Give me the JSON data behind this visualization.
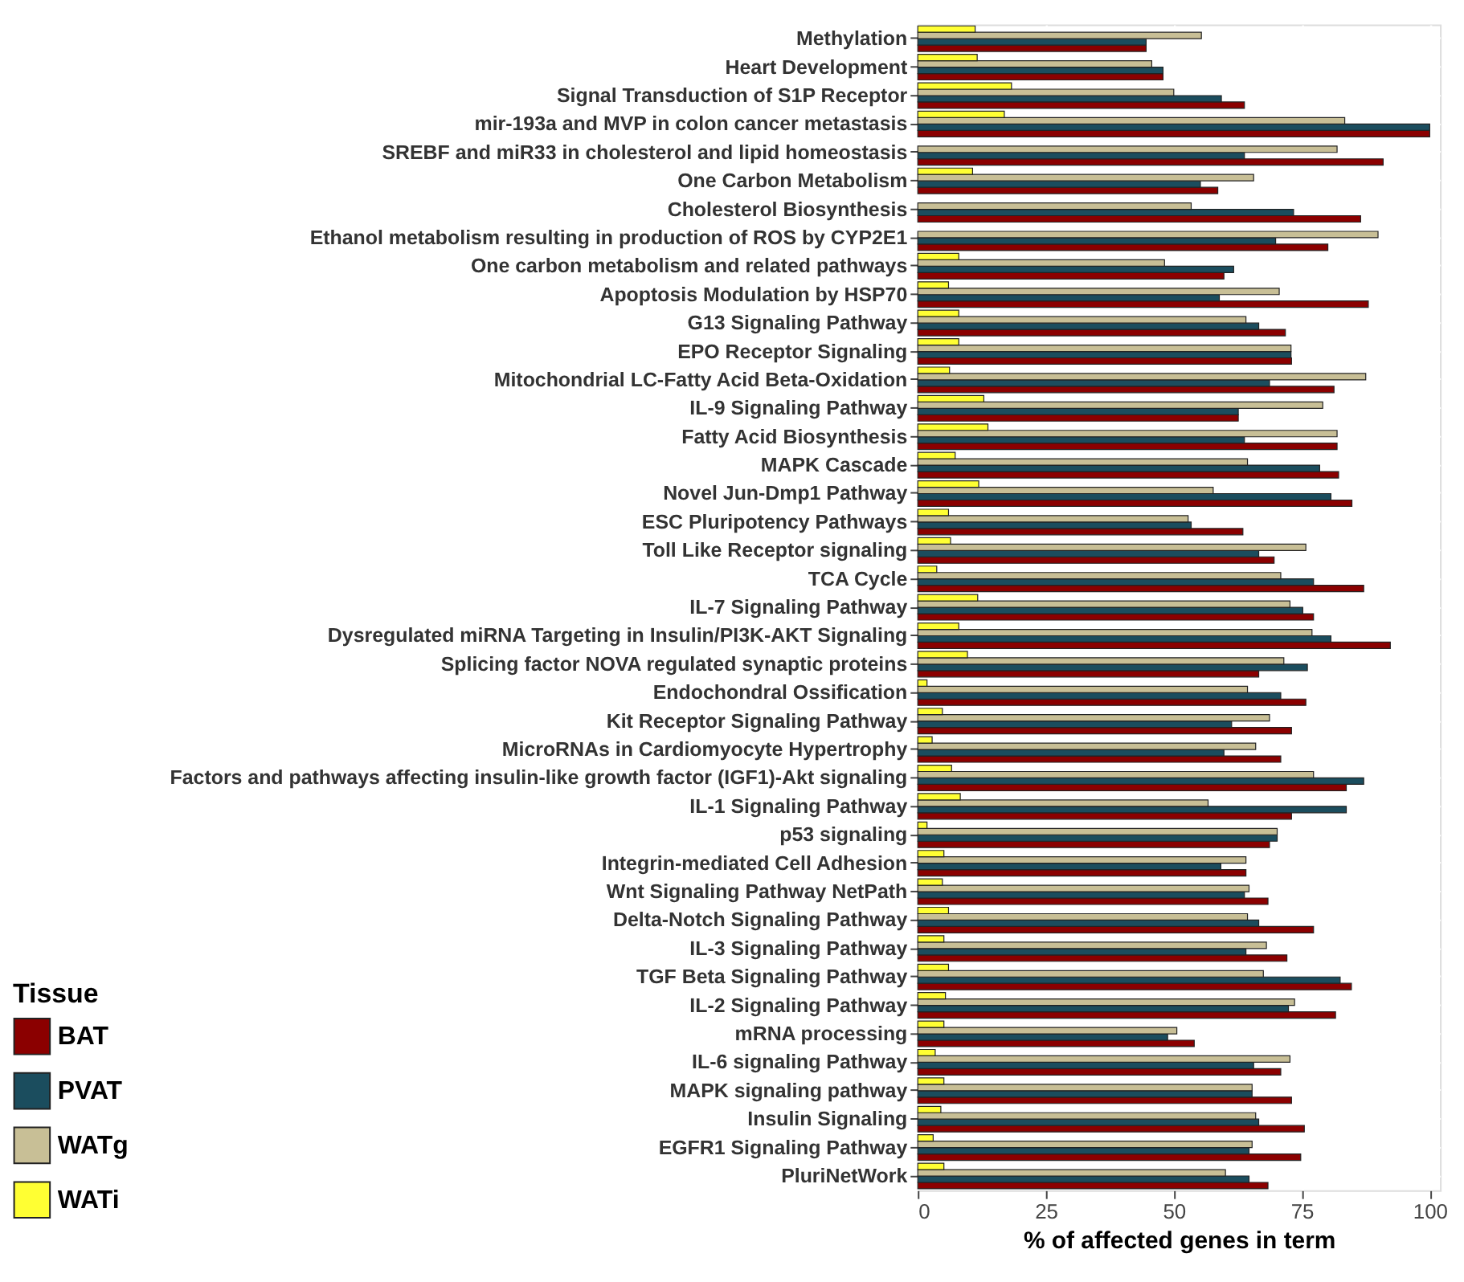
{
  "chart_data": {
    "type": "bar",
    "orientation": "horizontal",
    "xlabel": "% of affected genes in term",
    "legend_title": "Tissue",
    "legend": "bottom left",
    "grid": true,
    "categories": [
      "Methylation",
      "Heart Development",
      "Signal Transduction of S1P Receptor",
      "mir-193a and MVP in colon cancer metastasis",
      "SREBF and miR33 in cholesterol and lipid homeostasis",
      "One Carbon Metabolism",
      "Cholesterol Biosynthesis",
      "Ethanol metabolism resulting in production of ROS by CYP2E1",
      "One carbon metabolism and related pathways",
      "Apoptosis Modulation by HSP70",
      "G13 Signaling Pathway",
      "EPO Receptor Signaling",
      "Mitochondrial LC-Fatty Acid Beta-Oxidation",
      "IL-9 Signaling Pathway",
      "Fatty Acid Biosynthesis",
      "MAPK Cascade",
      "Novel Jun-Dmp1 Pathway",
      "ESC Pluripotency Pathways",
      "Toll Like Receptor signaling",
      "TCA Cycle",
      "IL-7 Signaling Pathway",
      "Dysregulated miRNA Targeting in Insulin/PI3K-AKT Signaling",
      "Splicing factor NOVA regulated synaptic proteins",
      "Endochondral Ossification",
      "Kit Receptor Signaling Pathway",
      "MicroRNAs in Cardiomyocyte Hypertrophy",
      "Factors and pathways affecting insulin-like growth factor (IGF1)-Akt signaling",
      "IL-1 Signaling Pathway",
      "p53 signaling",
      "Integrin-mediated Cell Adhesion",
      "Wnt Signaling Pathway NetPath",
      "Delta-Notch Signaling Pathway",
      "IL-3 Signaling Pathway",
      "TGF Beta Signaling Pathway",
      "IL-2 Signaling Pathway",
      "mRNA processing",
      "IL-6 signaling Pathway",
      "MAPK signaling pathway",
      "Insulin Signaling",
      "EGFR1 Signaling Pathway",
      "PluriNetWork"
    ],
    "series": [
      {
        "name": "BAT",
        "color": "#8b0000",
        "values": [
          44.6,
          47.9,
          63.8,
          100,
          90.9,
          58.6,
          86.5,
          80.1,
          59.8,
          88,
          71.8,
          73,
          81.3,
          62.6,
          81.9,
          82.2,
          84.8,
          63.5,
          69.6,
          87.1,
          77.3,
          92.3,
          66.6,
          75.8,
          73,
          70.9,
          83.7,
          73,
          68.7,
          64.1,
          68.4,
          77.3,
          72.1,
          84.7,
          81.6,
          54,
          70.9,
          73,
          75.5,
          74.8,
          68.4
        ]
      },
      {
        "name": "PVAT",
        "color": "#1b4d5e",
        "values": [
          44.6,
          47.9,
          59.3,
          100,
          63.8,
          55.2,
          73.4,
          69.9,
          61.7,
          58.9,
          66.6,
          72.9,
          68.7,
          62.6,
          63.8,
          78.5,
          80.7,
          53.4,
          66.6,
          77.3,
          75.2,
          80.7,
          76.1,
          70.9,
          61.3,
          59.8,
          87.1,
          83.7,
          70.2,
          59.2,
          63.8,
          66.6,
          64.1,
          82.5,
          72.4,
          48.8,
          65.6,
          65.3,
          66.6,
          64.7,
          64.7
        ]
      },
      {
        "name": "WATg",
        "color": "#c8bf96",
        "values": [
          55.4,
          45.7,
          50,
          83.4,
          81.9,
          65.6,
          53.4,
          89.9,
          48.2,
          70.6,
          64.1,
          72.9,
          87.5,
          79.1,
          81.9,
          64.4,
          57.7,
          52.8,
          75.8,
          70.9,
          72.7,
          77,
          71.5,
          64.4,
          68.7,
          66,
          77.3,
          56.7,
          70.2,
          64.1,
          64.7,
          64.4,
          68.1,
          67.5,
          73.6,
          50.6,
          72.7,
          65.3,
          66,
          65.3,
          60.1
        ]
      },
      {
        "name": "WATi",
        "color": "#ffff33",
        "values": [
          11.2,
          11.6,
          18.3,
          16.9,
          null,
          10.7,
          null,
          null,
          8,
          6,
          8,
          8,
          6.2,
          12.9,
          13.7,
          7.3,
          11.9,
          6,
          6.4,
          3.7,
          11.7,
          8,
          9.7,
          1.8,
          4.8,
          2.8,
          6.6,
          8.3,
          1.8,
          5.1,
          4.8,
          6,
          5.1,
          6,
          5.4,
          5.1,
          3.4,
          5.1,
          4.5,
          3,
          5.1
        ]
      }
    ],
    "xlim": [
      0,
      102
    ],
    "xticks": [
      0,
      25,
      50,
      75,
      100
    ]
  }
}
